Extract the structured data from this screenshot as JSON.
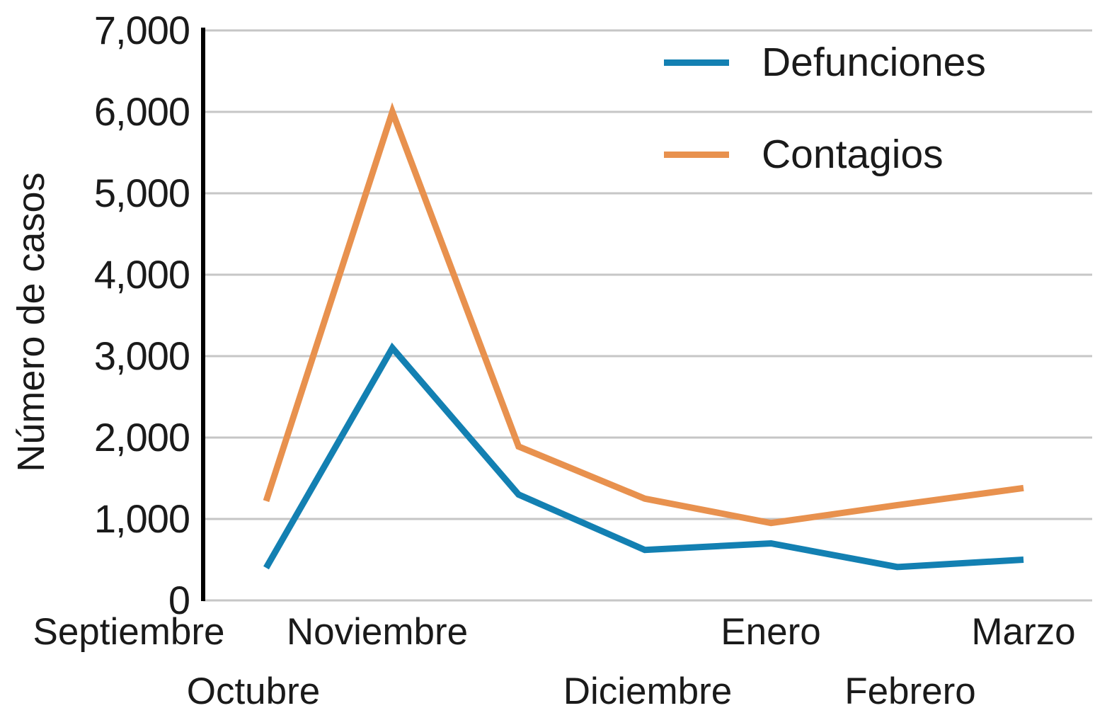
{
  "chart_data": {
    "type": "line",
    "title": "",
    "xlabel": "",
    "ylabel": "Número de casos",
    "categories": [
      "Septiembre",
      "Octubre",
      "Noviembre",
      "Diciembre",
      "Enero",
      "Febrero",
      "Marzo"
    ],
    "series": [
      {
        "name": "Defunciones",
        "color": "#1380B2",
        "values": [
          400,
          3100,
          1300,
          620,
          700,
          410,
          500
        ]
      },
      {
        "name": "Contagios",
        "color": "#E8914E",
        "values": [
          1220,
          6000,
          1890,
          1250,
          950,
          1170,
          1380
        ]
      }
    ],
    "ylim": [
      0,
      7000
    ],
    "ytick_step": 1000,
    "ytick_labels": [
      "7,000",
      "6,000",
      "5,000",
      "4,000",
      "3,000",
      "2,000",
      "1,000",
      "0"
    ],
    "grid": "horizontal",
    "grid_color": "#C6C6C6",
    "axis_color": "#000000",
    "legend_position": "top-right"
  }
}
